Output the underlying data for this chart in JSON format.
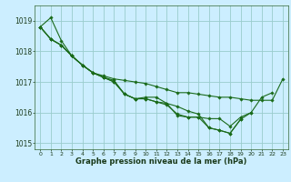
{
  "background_color": "#cceeff",
  "grid_color": "#99cccc",
  "line_color": "#1a6b1a",
  "xlabel": "Graphe pression niveau de la mer (hPa)",
  "ylim": [
    1014.8,
    1019.5
  ],
  "xlim": [
    -0.5,
    23.5
  ],
  "yticks": [
    1015,
    1016,
    1017,
    1018,
    1019
  ],
  "xticks": [
    0,
    1,
    2,
    3,
    4,
    5,
    6,
    7,
    8,
    9,
    10,
    11,
    12,
    13,
    14,
    15,
    16,
    17,
    18,
    19,
    20,
    21,
    22,
    23
  ],
  "series": [
    [
      1018.8,
      1019.1,
      1018.35,
      1017.85,
      1017.55,
      1017.3,
      1017.2,
      1017.1,
      1017.05,
      1017.0,
      1016.95,
      1016.85,
      1016.75,
      1016.65,
      1016.65,
      1016.6,
      1016.55,
      1016.5,
      1016.5,
      1016.45,
      1016.4,
      1016.4,
      1016.4,
      1017.1
    ],
    [
      1018.8,
      1018.4,
      1018.2,
      1017.85,
      1017.55,
      1017.3,
      1017.15,
      1017.05,
      1016.6,
      1016.45,
      1016.5,
      1016.5,
      1016.3,
      1015.9,
      1015.85,
      1015.85,
      1015.8,
      1015.8,
      1015.55,
      1015.85,
      1016.0,
      1016.5,
      1016.65,
      null
    ],
    [
      1018.8,
      1018.4,
      1018.2,
      1017.85,
      1017.55,
      1017.3,
      1017.15,
      1017.0,
      1016.6,
      1016.45,
      1016.45,
      1016.35,
      1016.25,
      1015.95,
      1015.85,
      1015.85,
      1015.5,
      1015.42,
      1015.32,
      1015.78,
      1016.0,
      null,
      null,
      null
    ],
    [
      1018.8,
      1018.4,
      1018.2,
      1017.85,
      1017.55,
      1017.3,
      1017.15,
      1017.0,
      1016.6,
      1016.45,
      1016.45,
      1016.35,
      1016.3,
      1016.2,
      1016.05,
      1015.95,
      1015.5,
      1015.42,
      1015.32,
      1015.78,
      null,
      null,
      null,
      null
    ]
  ]
}
